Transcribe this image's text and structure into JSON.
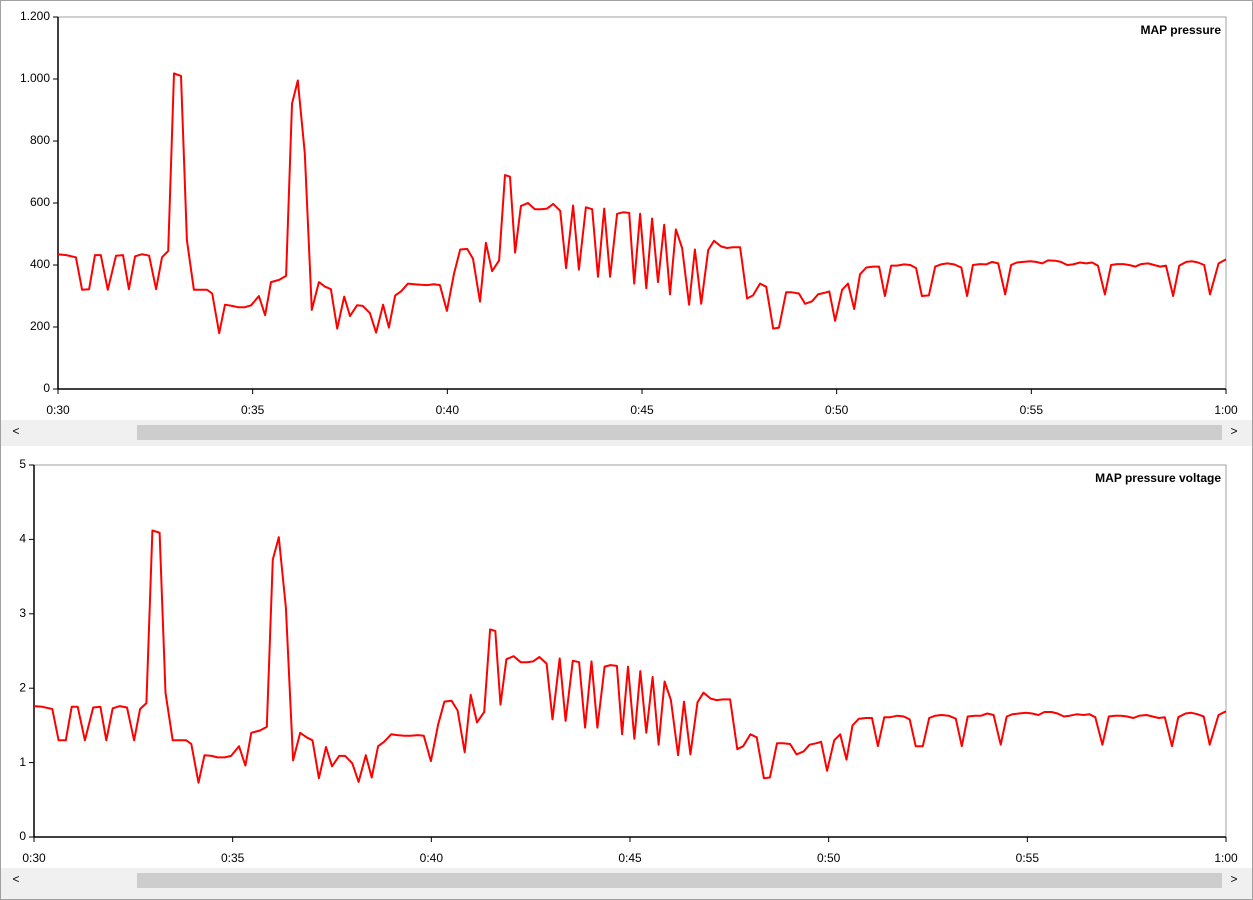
{
  "chart_data": [
    {
      "type": "line",
      "title": "MAP pressure",
      "x": [
        30.0,
        30.21,
        30.46,
        30.62,
        30.8,
        30.95,
        31.1,
        31.28,
        31.49,
        31.67,
        31.82,
        31.98,
        32.16,
        32.34,
        32.52,
        32.67,
        32.83,
        32.98,
        33.16,
        33.31,
        33.49,
        33.67,
        33.83,
        33.96,
        34.14,
        34.29,
        34.47,
        34.62,
        34.8,
        34.96,
        35.16,
        35.32,
        35.47,
        35.68,
        35.86,
        36.01,
        36.16,
        36.34,
        36.52,
        36.7,
        36.86,
        37.01,
        37.17,
        37.35,
        37.5,
        37.68,
        37.83,
        38.01,
        38.17,
        38.35,
        38.5,
        38.66,
        38.81,
        38.99,
        39.14,
        39.32,
        39.48,
        39.66,
        39.81,
        39.99,
        40.17,
        40.33,
        40.51,
        40.66,
        40.84,
        40.99,
        41.15,
        41.33,
        41.48,
        41.61,
        41.74,
        41.89,
        42.07,
        42.25,
        42.41,
        42.56,
        42.72,
        42.9,
        43.05,
        43.23,
        43.38,
        43.56,
        43.72,
        43.87,
        44.03,
        44.18,
        44.36,
        44.51,
        44.67,
        44.8,
        44.95,
        45.11,
        45.26,
        45.41,
        45.57,
        45.72,
        45.87,
        46.03,
        46.21,
        46.36,
        46.52,
        46.7,
        46.85,
        47.03,
        47.18,
        47.34,
        47.52,
        47.7,
        47.85,
        48.03,
        48.19,
        48.37,
        48.52,
        48.7,
        48.85,
        49.03,
        49.19,
        49.37,
        49.52,
        49.68,
        49.81,
        49.96,
        50.14,
        50.29,
        50.45,
        50.6,
        50.76,
        50.94,
        51.09,
        51.24,
        51.4,
        51.55,
        51.73,
        51.89,
        52.04,
        52.19,
        52.37,
        52.53,
        52.68,
        52.84,
        53.02,
        53.2,
        53.35,
        53.5,
        53.68,
        53.84,
        53.99,
        54.15,
        54.33,
        54.48,
        54.63,
        54.79,
        54.97,
        55.12,
        55.28,
        55.43,
        55.61,
        55.76,
        55.92,
        56.07,
        56.25,
        56.41,
        56.56,
        56.71,
        56.89,
        57.05,
        57.2,
        57.36,
        57.51,
        57.67,
        57.82,
        58.0,
        58.15,
        58.31,
        58.46,
        58.64,
        58.8,
        58.98,
        59.13,
        59.28,
        59.44,
        59.59,
        59.81,
        60.0
      ],
      "series": [
        {
          "color": "#ff0000",
          "values": [
            435,
            432,
            425,
            320,
            322,
            432,
            432,
            320,
            430,
            432,
            322,
            428,
            435,
            430,
            322,
            425,
            445,
            1018,
            1010,
            480,
            320,
            320,
            320,
            308,
            180,
            272,
            268,
            264,
            264,
            270,
            300,
            238,
            345,
            352,
            365,
            920,
            995,
            760,
            255,
            345,
            330,
            322,
            195,
            298,
            235,
            270,
            268,
            245,
            182,
            272,
            198,
            302,
            315,
            340,
            338,
            336,
            335,
            338,
            335,
            252,
            372,
            450,
            452,
            420,
            282,
            472,
            380,
            415,
            690,
            685,
            440,
            590,
            600,
            580,
            580,
            582,
            597,
            575,
            390,
            592,
            385,
            586,
            580,
            362,
            582,
            362,
            565,
            570,
            568,
            340,
            565,
            325,
            550,
            345,
            530,
            305,
            515,
            455,
            272,
            450,
            275,
            448,
            478,
            460,
            455,
            457,
            457,
            292,
            302,
            340,
            330,
            195,
            198,
            312,
            312,
            308,
            275,
            283,
            305,
            310,
            315,
            220,
            320,
            340,
            258,
            370,
            392,
            395,
            395,
            300,
            398,
            398,
            402,
            400,
            390,
            300,
            302,
            395,
            402,
            405,
            402,
            392,
            300,
            400,
            403,
            402,
            410,
            405,
            305,
            400,
            408,
            410,
            412,
            410,
            405,
            415,
            414,
            410,
            400,
            402,
            408,
            405,
            408,
            398,
            305,
            400,
            403,
            403,
            400,
            395,
            403,
            405,
            400,
            395,
            398,
            300,
            398,
            410,
            412,
            408,
            400,
            305,
            405,
            418
          ]
        }
      ],
      "xlim": [
        30,
        60
      ],
      "xticks": [
        {
          "value": 30,
          "label": "0:30"
        },
        {
          "value": 35,
          "label": "0:35"
        },
        {
          "value": 40,
          "label": "0:40"
        },
        {
          "value": 45,
          "label": "0:45"
        },
        {
          "value": 50,
          "label": "0:50"
        },
        {
          "value": 55,
          "label": "0:55"
        },
        {
          "value": 60,
          "label": "1:00"
        }
      ],
      "ylim": [
        0,
        1200
      ],
      "yticks": [
        0,
        200,
        400,
        600,
        800,
        {
          "value": 1000,
          "label": "1.000"
        },
        {
          "value": 1200,
          "label": "1.200"
        }
      ]
    },
    {
      "type": "line",
      "title": "MAP pressure voltage",
      "x": [
        30.0,
        30.21,
        30.46,
        30.62,
        30.8,
        30.95,
        31.1,
        31.28,
        31.49,
        31.67,
        31.82,
        31.98,
        32.16,
        32.34,
        32.52,
        32.67,
        32.83,
        32.98,
        33.16,
        33.31,
        33.49,
        33.67,
        33.83,
        33.96,
        34.14,
        34.29,
        34.47,
        34.62,
        34.8,
        34.96,
        35.16,
        35.32,
        35.47,
        35.68,
        35.86,
        36.01,
        36.16,
        36.34,
        36.52,
        36.7,
        36.86,
        37.01,
        37.17,
        37.35,
        37.5,
        37.68,
        37.83,
        38.01,
        38.17,
        38.35,
        38.5,
        38.66,
        38.81,
        38.99,
        39.14,
        39.32,
        39.48,
        39.66,
        39.81,
        39.99,
        40.17,
        40.33,
        40.51,
        40.66,
        40.84,
        40.99,
        41.15,
        41.33,
        41.48,
        41.61,
        41.74,
        41.89,
        42.07,
        42.25,
        42.41,
        42.56,
        42.72,
        42.9,
        43.05,
        43.23,
        43.38,
        43.56,
        43.72,
        43.87,
        44.03,
        44.18,
        44.36,
        44.51,
        44.67,
        44.8,
        44.95,
        45.11,
        45.26,
        45.41,
        45.57,
        45.72,
        45.87,
        46.03,
        46.21,
        46.36,
        46.52,
        46.7,
        46.85,
        47.03,
        47.18,
        47.34,
        47.52,
        47.7,
        47.85,
        48.03,
        48.19,
        48.37,
        48.52,
        48.7,
        48.85,
        49.03,
        49.19,
        49.37,
        49.52,
        49.68,
        49.81,
        49.96,
        50.14,
        50.29,
        50.45,
        50.6,
        50.76,
        50.94,
        51.09,
        51.24,
        51.4,
        51.55,
        51.73,
        51.89,
        52.04,
        52.19,
        52.37,
        52.53,
        52.68,
        52.84,
        53.02,
        53.2,
        53.35,
        53.5,
        53.68,
        53.84,
        53.99,
        54.15,
        54.33,
        54.48,
        54.63,
        54.79,
        54.97,
        55.12,
        55.28,
        55.43,
        55.61,
        55.76,
        55.92,
        56.07,
        56.25,
        56.41,
        56.56,
        56.71,
        56.89,
        57.05,
        57.2,
        57.36,
        57.51,
        57.67,
        57.82,
        58.0,
        58.15,
        58.31,
        58.46,
        58.64,
        58.8,
        58.98,
        59.13,
        59.28,
        59.44,
        59.59,
        59.81,
        60.0
      ],
      "series": [
        {
          "color": "#ff0000",
          "values": [
            1.76,
            1.75,
            1.72,
            1.3,
            1.3,
            1.75,
            1.75,
            1.3,
            1.74,
            1.75,
            1.3,
            1.73,
            1.76,
            1.74,
            1.3,
            1.72,
            1.8,
            4.12,
            4.09,
            1.94,
            1.3,
            1.3,
            1.3,
            1.25,
            0.73,
            1.1,
            1.09,
            1.07,
            1.07,
            1.09,
            1.22,
            0.96,
            1.4,
            1.43,
            1.48,
            3.73,
            4.03,
            3.08,
            1.03,
            1.4,
            1.34,
            1.3,
            0.79,
            1.21,
            0.95,
            1.09,
            1.09,
            0.99,
            0.74,
            1.1,
            0.8,
            1.22,
            1.28,
            1.38,
            1.37,
            1.36,
            1.36,
            1.37,
            1.36,
            1.02,
            1.51,
            1.82,
            1.83,
            1.7,
            1.14,
            1.91,
            1.54,
            1.68,
            2.79,
            2.77,
            1.78,
            2.39,
            2.43,
            2.35,
            2.35,
            2.36,
            2.42,
            2.33,
            1.58,
            2.4,
            1.56,
            2.37,
            2.35,
            1.47,
            2.36,
            1.47,
            2.29,
            2.31,
            2.3,
            1.38,
            2.29,
            1.32,
            2.23,
            1.4,
            2.15,
            1.24,
            2.09,
            1.84,
            1.1,
            1.82,
            1.11,
            1.81,
            1.94,
            1.86,
            1.84,
            1.85,
            1.85,
            1.18,
            1.22,
            1.38,
            1.34,
            0.79,
            0.8,
            1.26,
            1.26,
            1.25,
            1.11,
            1.15,
            1.24,
            1.26,
            1.28,
            0.89,
            1.3,
            1.38,
            1.04,
            1.5,
            1.59,
            1.6,
            1.6,
            1.22,
            1.61,
            1.61,
            1.63,
            1.62,
            1.58,
            1.22,
            1.22,
            1.6,
            1.63,
            1.64,
            1.63,
            1.59,
            1.22,
            1.62,
            1.63,
            1.63,
            1.66,
            1.64,
            1.24,
            1.62,
            1.65,
            1.66,
            1.67,
            1.66,
            1.64,
            1.68,
            1.68,
            1.66,
            1.62,
            1.63,
            1.65,
            1.64,
            1.65,
            1.61,
            1.24,
            1.62,
            1.63,
            1.63,
            1.62,
            1.6,
            1.63,
            1.64,
            1.62,
            1.6,
            1.61,
            1.22,
            1.61,
            1.66,
            1.67,
            1.65,
            1.62,
            1.24,
            1.64,
            1.69
          ]
        }
      ],
      "xlim": [
        30,
        60
      ],
      "xticks": [
        {
          "value": 30,
          "label": "0:30"
        },
        {
          "value": 35,
          "label": "0:35"
        },
        {
          "value": 40,
          "label": "0:40"
        },
        {
          "value": 45,
          "label": "0:45"
        },
        {
          "value": 50,
          "label": "0:50"
        },
        {
          "value": 55,
          "label": "0:55"
        },
        {
          "value": 60,
          "label": "1:00"
        }
      ],
      "ylim": [
        0,
        5
      ],
      "yticks": [
        0,
        1,
        2,
        3,
        4,
        5
      ]
    }
  ]
}
